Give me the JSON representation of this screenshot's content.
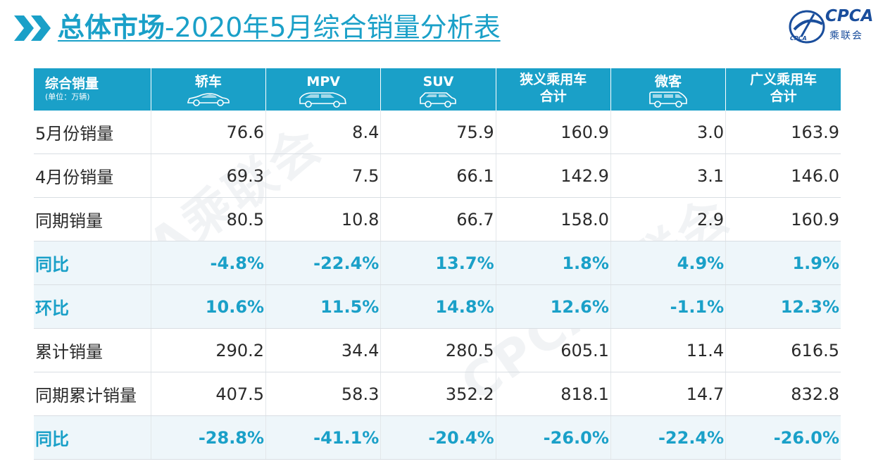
{
  "title": {
    "bold": "总体市场",
    "rest": "-2020年5月综合销量分析表"
  },
  "logo": {
    "text": "CPCA",
    "sub": "乘联会",
    "tiny": "CPCA"
  },
  "watermark": "CPCA乘联会",
  "table": {
    "corner": {
      "main": "综合销量",
      "sub": "(单位：万辆)"
    },
    "columns": [
      {
        "line1": "轿车",
        "line2": "",
        "icon": "sedan-icon"
      },
      {
        "line1": "MPV",
        "line2": "",
        "icon": "mpv-icon"
      },
      {
        "line1": "SUV",
        "line2": "",
        "icon": "suv-icon"
      },
      {
        "line1": "狭义乘用车",
        "line2": "合计",
        "icon": ""
      },
      {
        "line1": "微客",
        "line2": "",
        "icon": "minivan-icon"
      },
      {
        "line1": "广义乘用车",
        "line2": "合计",
        "icon": ""
      }
    ],
    "rows": [
      {
        "label": "5月份销量",
        "values": [
          "76.6",
          "8.4",
          "75.9",
          "160.9",
          "3.0",
          "163.9"
        ],
        "highlight": false
      },
      {
        "label": "4月份销量",
        "values": [
          "69.3",
          "7.5",
          "66.1",
          "142.9",
          "3.1",
          "146.0"
        ],
        "highlight": false
      },
      {
        "label": "同期销量",
        "values": [
          "80.5",
          "10.8",
          "66.7",
          "158.0",
          "2.9",
          "160.9"
        ],
        "highlight": false
      },
      {
        "label": "同比",
        "values": [
          "-4.8%",
          "-22.4%",
          "13.7%",
          "1.8%",
          "4.9%",
          "1.9%"
        ],
        "highlight": true
      },
      {
        "label": "环比",
        "values": [
          "10.6%",
          "11.5%",
          "14.8%",
          "12.6%",
          "-1.1%",
          "12.3%"
        ],
        "highlight": true
      },
      {
        "label": "累计销量",
        "values": [
          "290.2",
          "34.4",
          "280.5",
          "605.1",
          "11.4",
          "616.5"
        ],
        "highlight": false
      },
      {
        "label": "同期累计销量",
        "values": [
          "407.5",
          "58.3",
          "352.2",
          "818.1",
          "14.7",
          "832.8"
        ],
        "highlight": false
      },
      {
        "label": "同比",
        "values": [
          "-28.8%",
          "-41.1%",
          "-20.4%",
          "-26.0%",
          "-22.4%",
          "-26.0%"
        ],
        "highlight": true
      }
    ]
  },
  "colors": {
    "accent": "#1aa0c8",
    "logo": "#1a4e9c",
    "highlight_row": "#eef6fa"
  }
}
